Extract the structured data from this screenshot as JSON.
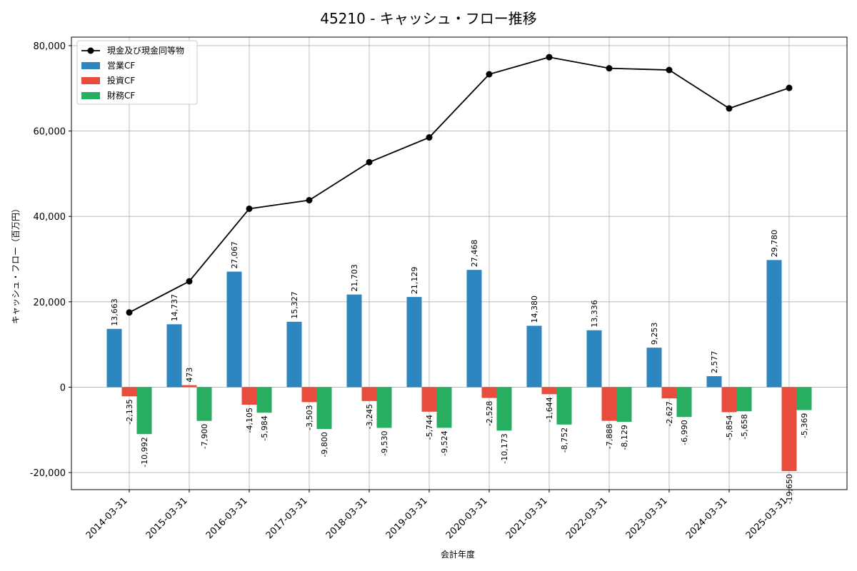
{
  "chart_data": {
    "type": "bar",
    "title": "45210 - キャッシュ・フロー推移",
    "xlabel": "会計年度",
    "ylabel": "キャッシュ・フロー（百万円）",
    "ylim": [
      -24000,
      82000
    ],
    "yticks": [
      -20000,
      0,
      20000,
      40000,
      60000,
      80000
    ],
    "ytick_labels": [
      "-20,000",
      "0",
      "20,000",
      "40,000",
      "60,000",
      "80,000"
    ],
    "grid": true,
    "legend_position": "top-left",
    "categories": [
      "2014-03-31",
      "2015-03-31",
      "2016-03-31",
      "2017-03-31",
      "2018-03-31",
      "2019-03-31",
      "2020-03-31",
      "2021-03-31",
      "2022-03-31",
      "2023-03-31",
      "2024-03-31",
      "2025-03-31"
    ],
    "line_series": {
      "name": "現金及び現金同等物",
      "color": "#000000",
      "values": [
        17500,
        24800,
        41800,
        43800,
        52700,
        58500,
        73300,
        77300,
        74700,
        74300,
        65300,
        70100
      ]
    },
    "series": [
      {
        "name": "営業CF",
        "color": "#2e86c1",
        "values": [
          13663,
          14737,
          27067,
          15327,
          21703,
          21129,
          27468,
          14380,
          13336,
          9253,
          2577,
          29780
        ],
        "labels": [
          "13,663",
          "14,737",
          "27,067",
          "15,327",
          "21,703",
          "21,129",
          "27,468",
          "14,380",
          "13,336",
          "9,253",
          "2,577",
          "29,780"
        ]
      },
      {
        "name": "投資CF",
        "color": "#e74c3c",
        "values": [
          -2135,
          473,
          -4105,
          -3503,
          -3245,
          -5744,
          -2528,
          -1644,
          -7888,
          -2627,
          -5854,
          -19650
        ],
        "labels": [
          "-2,135",
          "473",
          "-4,105",
          "-3,503",
          "-3,245",
          "-5,744",
          "-2,528",
          "-1,644",
          "-7,888",
          "-2,627",
          "-5,854",
          "-19,650"
        ]
      },
      {
        "name": "財務CF",
        "color": "#27ae60",
        "values": [
          -10992,
          -7900,
          -5984,
          -9800,
          -9530,
          -9524,
          -10173,
          -8752,
          -8129,
          -6990,
          -5658,
          -5369
        ],
        "labels": [
          "-10,992",
          "-7,900",
          "-5,984",
          "-9,800",
          "-9,530",
          "-9,524",
          "-10,173",
          "-8,752",
          "-8,129",
          "-6,990",
          "-5,658",
          "-5,369"
        ]
      }
    ]
  }
}
